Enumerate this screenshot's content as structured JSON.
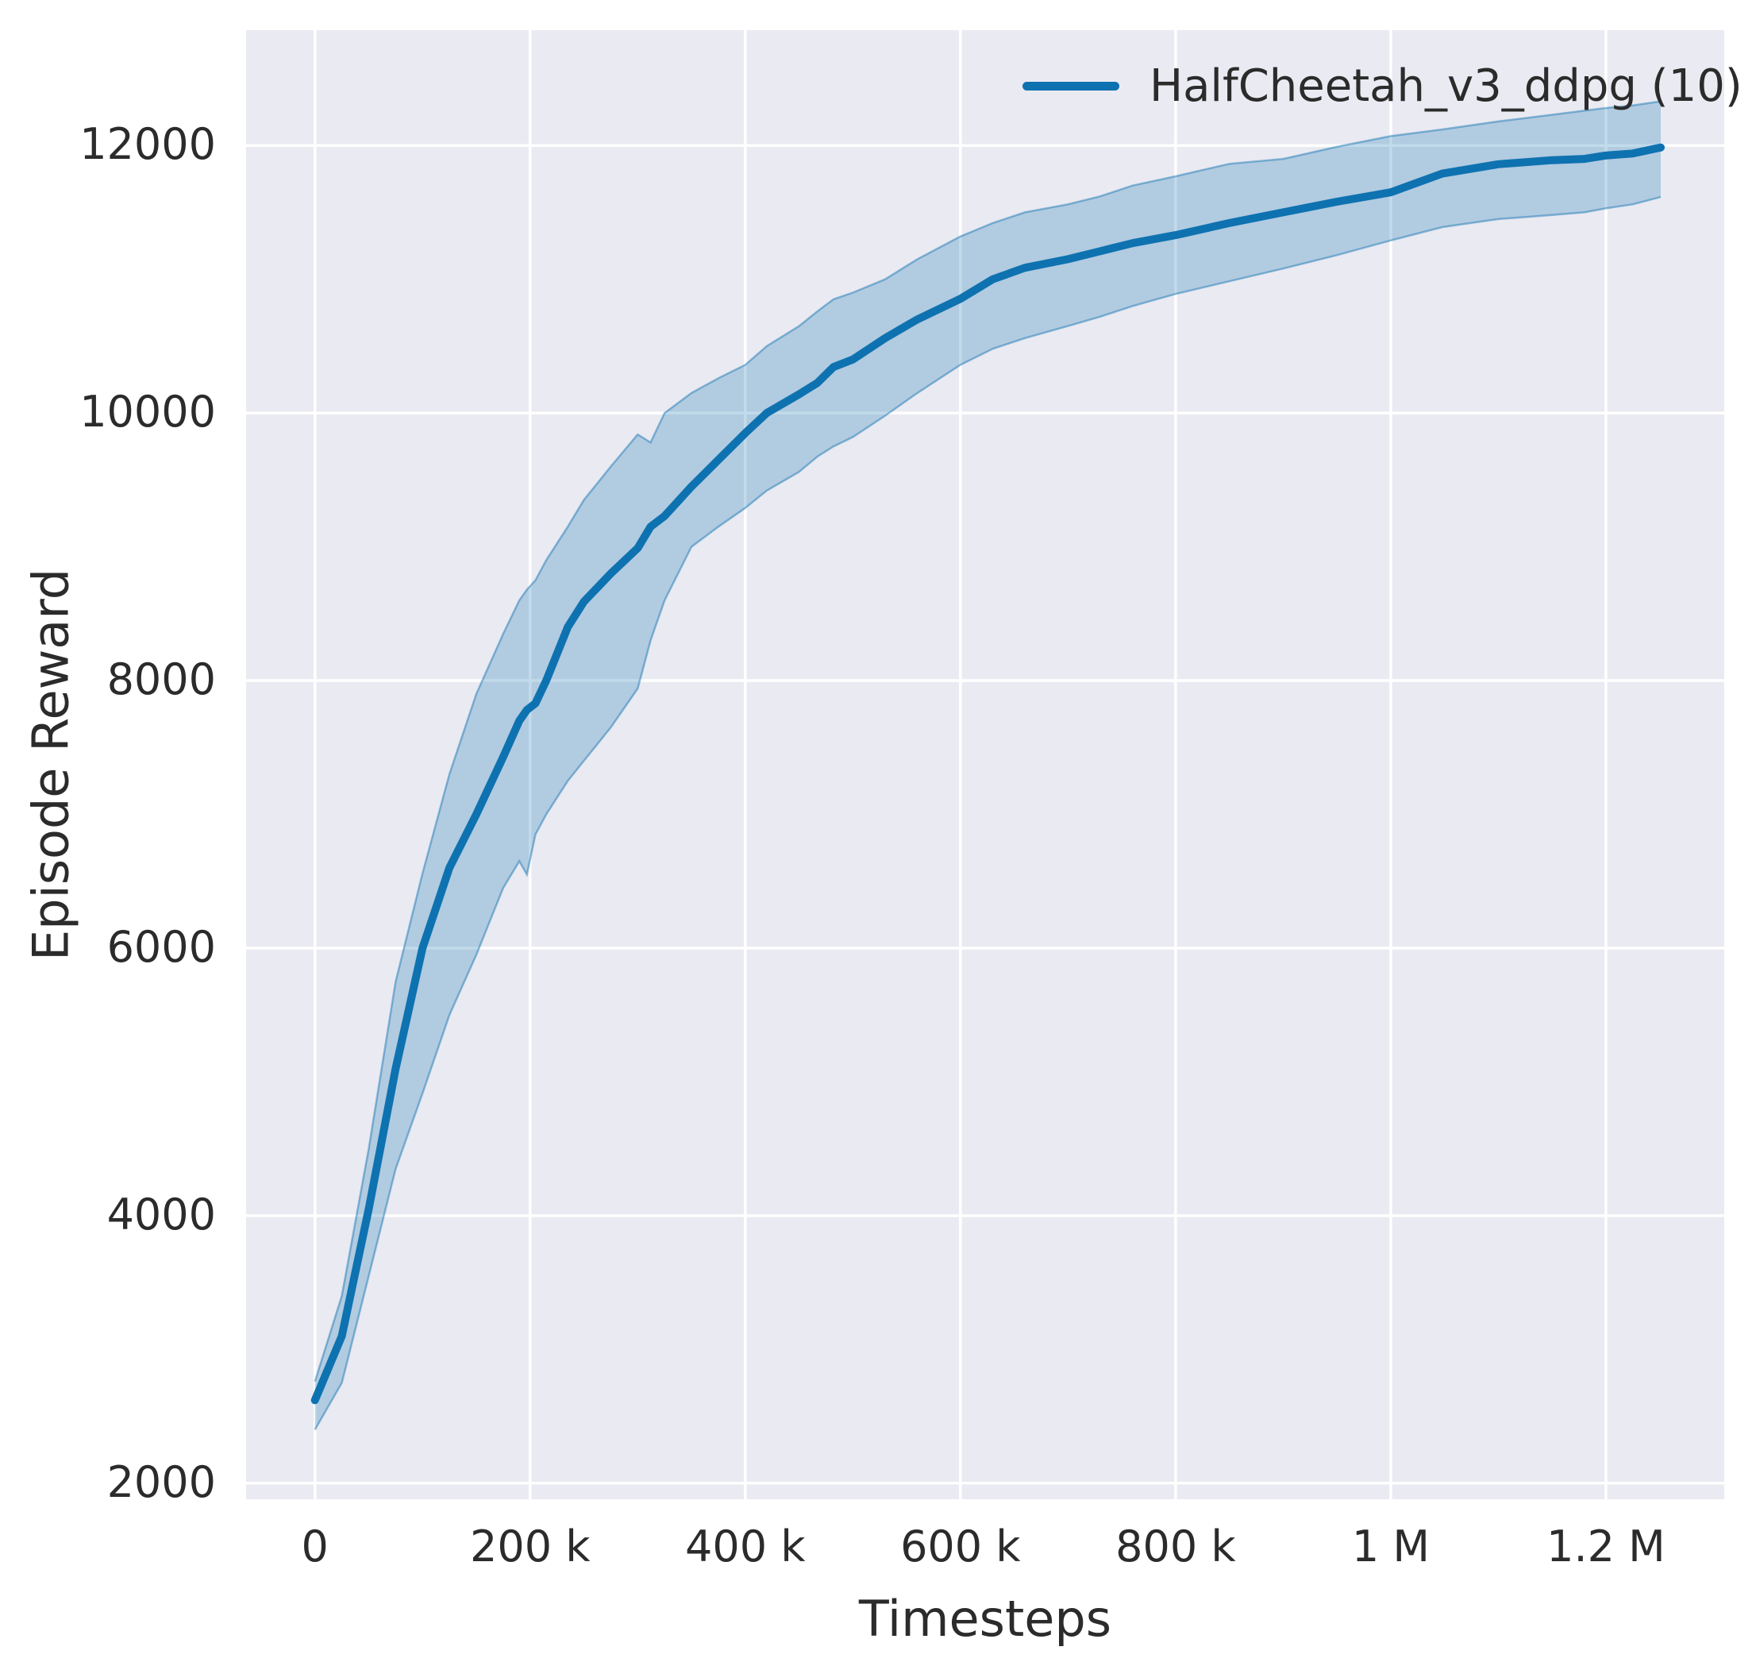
{
  "chart_data": {
    "type": "line",
    "title": "",
    "xlabel": "Timesteps",
    "ylabel": "Episode Reward",
    "grid": true,
    "legend_position": "upper right",
    "plot_bg": "#eaeaf2",
    "grid_color": "#ffffff",
    "text_color": "#2b2b2b",
    "xlim": [
      -64000,
      1310000
    ],
    "ylim": [
      1880,
      12862
    ],
    "x_ticks": [
      {
        "value": 0,
        "label": "0"
      },
      {
        "value": 200000,
        "label": "200 k"
      },
      {
        "value": 400000,
        "label": "400 k"
      },
      {
        "value": 600000,
        "label": "600 k"
      },
      {
        "value": 800000,
        "label": "800 k"
      },
      {
        "value": 1000000,
        "label": "1 M"
      },
      {
        "value": 1200000,
        "label": "1.2 M"
      }
    ],
    "y_ticks": [
      {
        "value": 2000,
        "label": "2000"
      },
      {
        "value": 4000,
        "label": "4000"
      },
      {
        "value": 6000,
        "label": "6000"
      },
      {
        "value": 8000,
        "label": "8000"
      },
      {
        "value": 10000,
        "label": "10000"
      },
      {
        "value": 12000,
        "label": "12000"
      }
    ],
    "legend": [
      {
        "label": "HalfCheetah_v3_ddpg (10)",
        "color": "#0e72b0"
      }
    ],
    "series": [
      {
        "name": "HalfCheetah_v3_ddpg (10)",
        "color": "#0e72b0",
        "band_fill": "rgba(14,114,176,0.26)",
        "band_edge": "rgba(14,114,176,0.45)",
        "x": [
          0,
          25000,
          50000,
          75000,
          100000,
          125000,
          150000,
          175000,
          190000,
          197000,
          205000,
          215000,
          235000,
          250000,
          275000,
          300000,
          312000,
          325000,
          350000,
          375000,
          400000,
          420000,
          450000,
          467000,
          482000,
          500000,
          530000,
          560000,
          600000,
          630000,
          660000,
          700000,
          730000,
          760000,
          800000,
          850000,
          900000,
          950000,
          1000000,
          1048000,
          1100000,
          1150000,
          1180000,
          1200000,
          1225000,
          1251000
        ],
        "mean": [
          2620,
          3100,
          4050,
          5100,
          6000,
          6600,
          7000,
          7430,
          7700,
          7780,
          7830,
          8000,
          8400,
          8590,
          8800,
          8990,
          9150,
          9230,
          9450,
          9650,
          9850,
          10000,
          10140,
          10225,
          10344,
          10400,
          10560,
          10700,
          10854,
          11000,
          11086,
          11150,
          11210,
          11270,
          11330,
          11420,
          11500,
          11580,
          11650,
          11790,
          11860,
          11890,
          11900,
          11925,
          11940,
          11985
        ],
        "band_low": [
          2400,
          2750,
          3550,
          4350,
          4914,
          5500,
          5950,
          6450,
          6650,
          6550,
          6850,
          7000,
          7250,
          7400,
          7650,
          7940,
          8300,
          8600,
          9000,
          9150,
          9290,
          9420,
          9560,
          9674,
          9750,
          9820,
          9980,
          10150,
          10360,
          10480,
          10560,
          10650,
          10720,
          10800,
          10890,
          10985,
          11080,
          11180,
          11290,
          11390,
          11450,
          11480,
          11500,
          11530,
          11560,
          11615
        ],
        "band_high": [
          2760,
          3400,
          4500,
          5750,
          6558,
          7300,
          7900,
          8350,
          8600,
          8680,
          8750,
          8900,
          9150,
          9350,
          9600,
          9840,
          9780,
          10000,
          10150,
          10260,
          10360,
          10500,
          10650,
          10760,
          10850,
          10900,
          11000,
          11150,
          11320,
          11420,
          11500,
          11560,
          11620,
          11700,
          11770,
          11863,
          11900,
          11990,
          12070,
          12120,
          12180,
          12230,
          12260,
          12280,
          12300,
          12330
        ]
      }
    ]
  }
}
